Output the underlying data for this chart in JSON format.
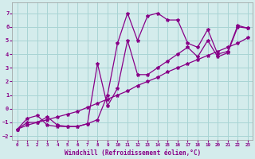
{
  "xlabel": "Windchill (Refroidissement éolien,°C)",
  "bg_color": "#d4ecec",
  "grid_color": "#a8d4d4",
  "line_color": "#880088",
  "xlim": [
    -0.5,
    23.5
  ],
  "ylim": [
    -2.3,
    7.8
  ],
  "xticks": [
    0,
    1,
    2,
    3,
    4,
    5,
    6,
    7,
    8,
    9,
    10,
    11,
    12,
    13,
    14,
    15,
    16,
    17,
    18,
    19,
    20,
    21,
    22,
    23
  ],
  "yticks": [
    -2,
    -1,
    0,
    1,
    2,
    3,
    4,
    5,
    6,
    7
  ],
  "series_jagged_x": [
    0,
    1,
    2,
    3,
    4,
    5,
    6,
    7,
    8,
    9,
    10,
    11,
    12,
    13,
    14,
    15,
    16,
    17,
    18,
    19,
    20,
    21,
    22,
    23
  ],
  "series_jagged_y": [
    -1.5,
    -0.7,
    -0.5,
    -1.2,
    -1.3,
    -1.3,
    -1.3,
    -1.1,
    -0.8,
    1.0,
    4.8,
    7.0,
    5.0,
    6.8,
    7.0,
    6.5,
    6.5,
    4.8,
    4.5,
    5.8,
    4.0,
    4.2,
    6.1,
    5.9
  ],
  "series_linear_x": [
    0,
    1,
    2,
    3,
    4,
    5,
    6,
    7,
    8,
    9,
    10,
    11,
    12,
    13,
    14,
    15,
    16,
    17,
    18,
    19,
    20,
    21,
    22,
    23
  ],
  "series_linear_y": [
    -1.5,
    -1.2,
    -1.0,
    -0.8,
    -0.6,
    -0.4,
    -0.2,
    0.1,
    0.4,
    0.7,
    1.0,
    1.3,
    1.7,
    2.0,
    2.3,
    2.7,
    3.0,
    3.3,
    3.6,
    3.9,
    4.2,
    4.5,
    4.8,
    5.2
  ],
  "series_loop_x": [
    0,
    1,
    2,
    3,
    4,
    5,
    6,
    7,
    8,
    9,
    10,
    11,
    12,
    13,
    14,
    15,
    16,
    17,
    18,
    19,
    20,
    21,
    22,
    23
  ],
  "series_loop_y": [
    -1.5,
    -1.0,
    -1.0,
    -0.6,
    -1.2,
    -1.3,
    -1.3,
    -1.1,
    3.3,
    0.2,
    1.5,
    5.0,
    2.5,
    2.5,
    3.0,
    3.5,
    4.0,
    4.5,
    3.8,
    5.0,
    3.8,
    4.1,
    6.0,
    5.9
  ],
  "marker": "*",
  "markersize": 3,
  "linewidth": 0.9
}
